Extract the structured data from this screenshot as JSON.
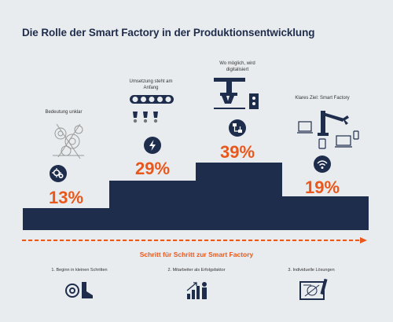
{
  "title": "Die Rolle der Smart Factory in der Produktionsentwicklung",
  "stages": [
    {
      "note": "Bedeutung unklar",
      "percent": "13%",
      "icon": "gears-icon"
    },
    {
      "note": "Umsetzung steht am Anfang",
      "percent": "29%",
      "icon": "lightning-icon"
    },
    {
      "note": "Wo möglich, wird digitalisiert",
      "percent": "39%",
      "icon": "flowchart-icon"
    },
    {
      "note": "Klares Ziel: Smart Factory",
      "percent": "19%",
      "icon": "wifi-icon"
    }
  ],
  "arrow_label": "Schritt für Schritt zur Smart Factory",
  "footer": [
    {
      "label": "1. Beginn in kleinen Schritten",
      "icon": "machine-boot-icon"
    },
    {
      "label": "2. Mitarbeiter als Erfolgsfaktor",
      "icon": "growth-person-icon"
    },
    {
      "label": "3. Individuelle Lösungen",
      "icon": "blueprint-icon"
    }
  ],
  "colors": {
    "navy": "#1f2d4c",
    "orange": "#e8581c",
    "background": "#e9ecef"
  }
}
